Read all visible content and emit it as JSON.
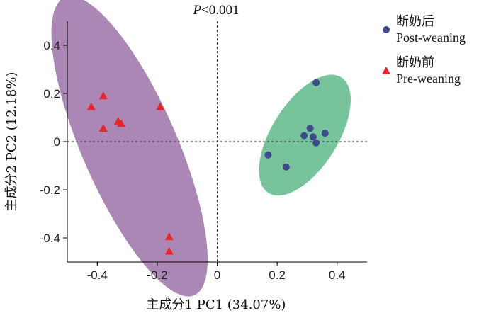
{
  "chart_data": {
    "type": "scatter",
    "title_prefix": "P",
    "title_rest": "<0.001",
    "xlabel": "主成分1 PC1 (34.07%)",
    "ylabel": "主成分2 PC2 (12.18%)",
    "xlim": [
      -0.5,
      0.5
    ],
    "ylim": [
      -0.5,
      0.5
    ],
    "xticks": [
      -0.4,
      -0.2,
      0,
      0.2,
      0.4
    ],
    "xtick_labels": [
      "-0.4",
      "-0.2",
      "0",
      "0.2",
      "0.4"
    ],
    "yticks": [
      0.4,
      0.2,
      0,
      -0.2,
      -0.4
    ],
    "ytick_labels": [
      "0.4",
      "0.2",
      "0",
      "-0.2",
      "-0.4"
    ],
    "reference_lines": {
      "x": 0,
      "y": 0,
      "style": "dotted"
    },
    "grid": false,
    "legend_position": "right",
    "series": [
      {
        "name_cn": "断奶后",
        "name_en": "Post-weaning",
        "marker": "circle",
        "color": "#3f4a8c",
        "ellipse_color": "#5fb88a",
        "x": [
          0.33,
          0.17,
          0.23,
          0.29,
          0.31,
          0.32,
          0.33,
          0.36
        ],
        "y": [
          0.245,
          -0.055,
          -0.105,
          0.025,
          0.055,
          0.02,
          -0.005,
          0.035
        ]
      },
      {
        "name_cn": "断奶前",
        "name_en": "Pre-weaning",
        "marker": "triangle",
        "color": "#e8262a",
        "ellipse_color": "#9b72a8",
        "x": [
          -0.42,
          -0.38,
          -0.38,
          -0.33,
          -0.32,
          -0.19,
          -0.16,
          -0.16
        ],
        "y": [
          0.145,
          0.19,
          0.055,
          0.085,
          0.075,
          0.145,
          -0.395,
          -0.455
        ]
      }
    ]
  }
}
